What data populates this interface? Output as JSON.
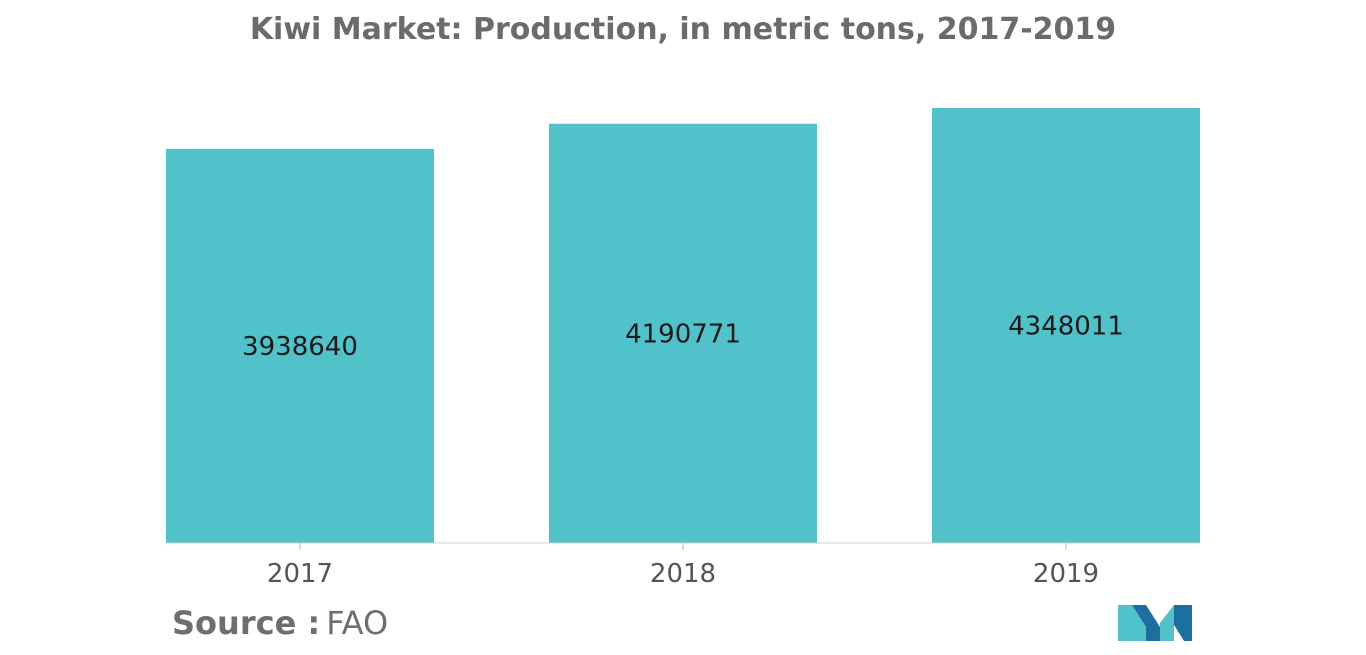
{
  "chart_data": {
    "type": "bar",
    "title": "Kiwi Market: Production, in metric tons, 2017-2019",
    "categories": [
      "2017",
      "2018",
      "2019"
    ],
    "values": [
      3938640,
      4190771,
      4348011
    ],
    "value_labels": [
      "3938640",
      "4190771",
      "4348011"
    ],
    "xlabel": "",
    "ylabel": "",
    "ylim": [
      0,
      4500000
    ],
    "grid": false,
    "legend": "none",
    "bar_color": "#52c2ca"
  },
  "footer": {
    "source_label": "Source :",
    "source_value": "FAO"
  },
  "logo": {
    "icon": "mordor-intelligence-logo",
    "color_dark": "#1d6f9f",
    "color_light": "#52c2ca"
  }
}
